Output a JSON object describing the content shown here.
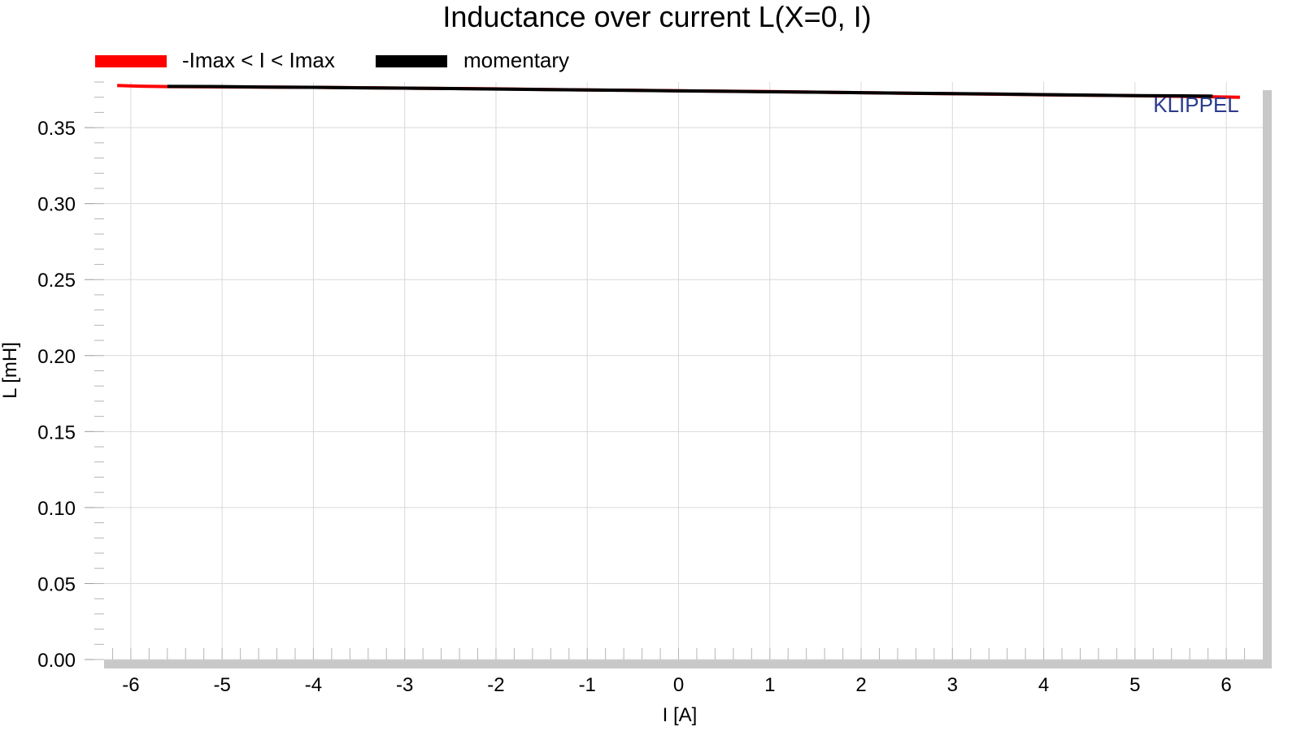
{
  "chart_data": {
    "type": "line",
    "title": "Inductance over current L(X=0, I)",
    "xlabel": "I [A]",
    "ylabel": "L [mH]",
    "xlim": [
      -6.4,
      6.4
    ],
    "ylim": [
      0.0,
      0.38
    ],
    "grid": true,
    "legend_placement": "top-left",
    "x_ticks": [
      -6,
      -5,
      -4,
      -3,
      -2,
      -1,
      0,
      1,
      2,
      3,
      4,
      5,
      6
    ],
    "x_tick_labels": [
      "-6",
      "-5",
      "-4",
      "-3",
      "-2",
      "-1",
      "0",
      "1",
      "2",
      "3",
      "4",
      "5",
      "6"
    ],
    "y_ticks": [
      0.0,
      0.05,
      0.1,
      0.15,
      0.2,
      0.25,
      0.3,
      0.35
    ],
    "y_tick_labels": [
      "0.00",
      "0.05",
      "0.10",
      "0.15",
      "0.20",
      "0.25",
      "0.30",
      "0.35"
    ],
    "watermark": "KLIPPEL",
    "series": [
      {
        "name": "-Imax < I < Imax",
        "color": "#ff0000",
        "x": [
          -6.15,
          -5.9,
          -5.6,
          -5.0,
          -4.0,
          -3.0,
          -2.0,
          -1.0,
          0.0,
          1.0,
          2.0,
          3.0,
          4.0,
          5.0,
          5.6,
          6.15
        ],
        "y": [
          0.3777,
          0.3773,
          0.377,
          0.3768,
          0.3765,
          0.376,
          0.3755,
          0.3748,
          0.3743,
          0.3737,
          0.373,
          0.3723,
          0.3716,
          0.371,
          0.3705,
          0.37
        ]
      },
      {
        "name": "momentary",
        "color": "#000000",
        "x": [
          -5.6,
          -5.0,
          -4.5,
          -4.0,
          -3.5,
          -3.0,
          -2.5,
          -2.0,
          -1.5,
          -1.0,
          -0.5,
          0.0,
          0.5,
          1.0,
          1.5,
          2.0,
          2.5,
          3.0,
          3.5,
          4.0,
          4.5,
          5.0,
          5.5,
          5.85
        ],
        "y": [
          0.3771,
          0.377,
          0.3767,
          0.3765,
          0.3762,
          0.376,
          0.3757,
          0.3754,
          0.3751,
          0.3748,
          0.3745,
          0.3742,
          0.3739,
          0.3736,
          0.3733,
          0.373,
          0.3727,
          0.3724,
          0.3721,
          0.3717,
          0.3714,
          0.3711,
          0.3709,
          0.3707
        ]
      }
    ]
  }
}
